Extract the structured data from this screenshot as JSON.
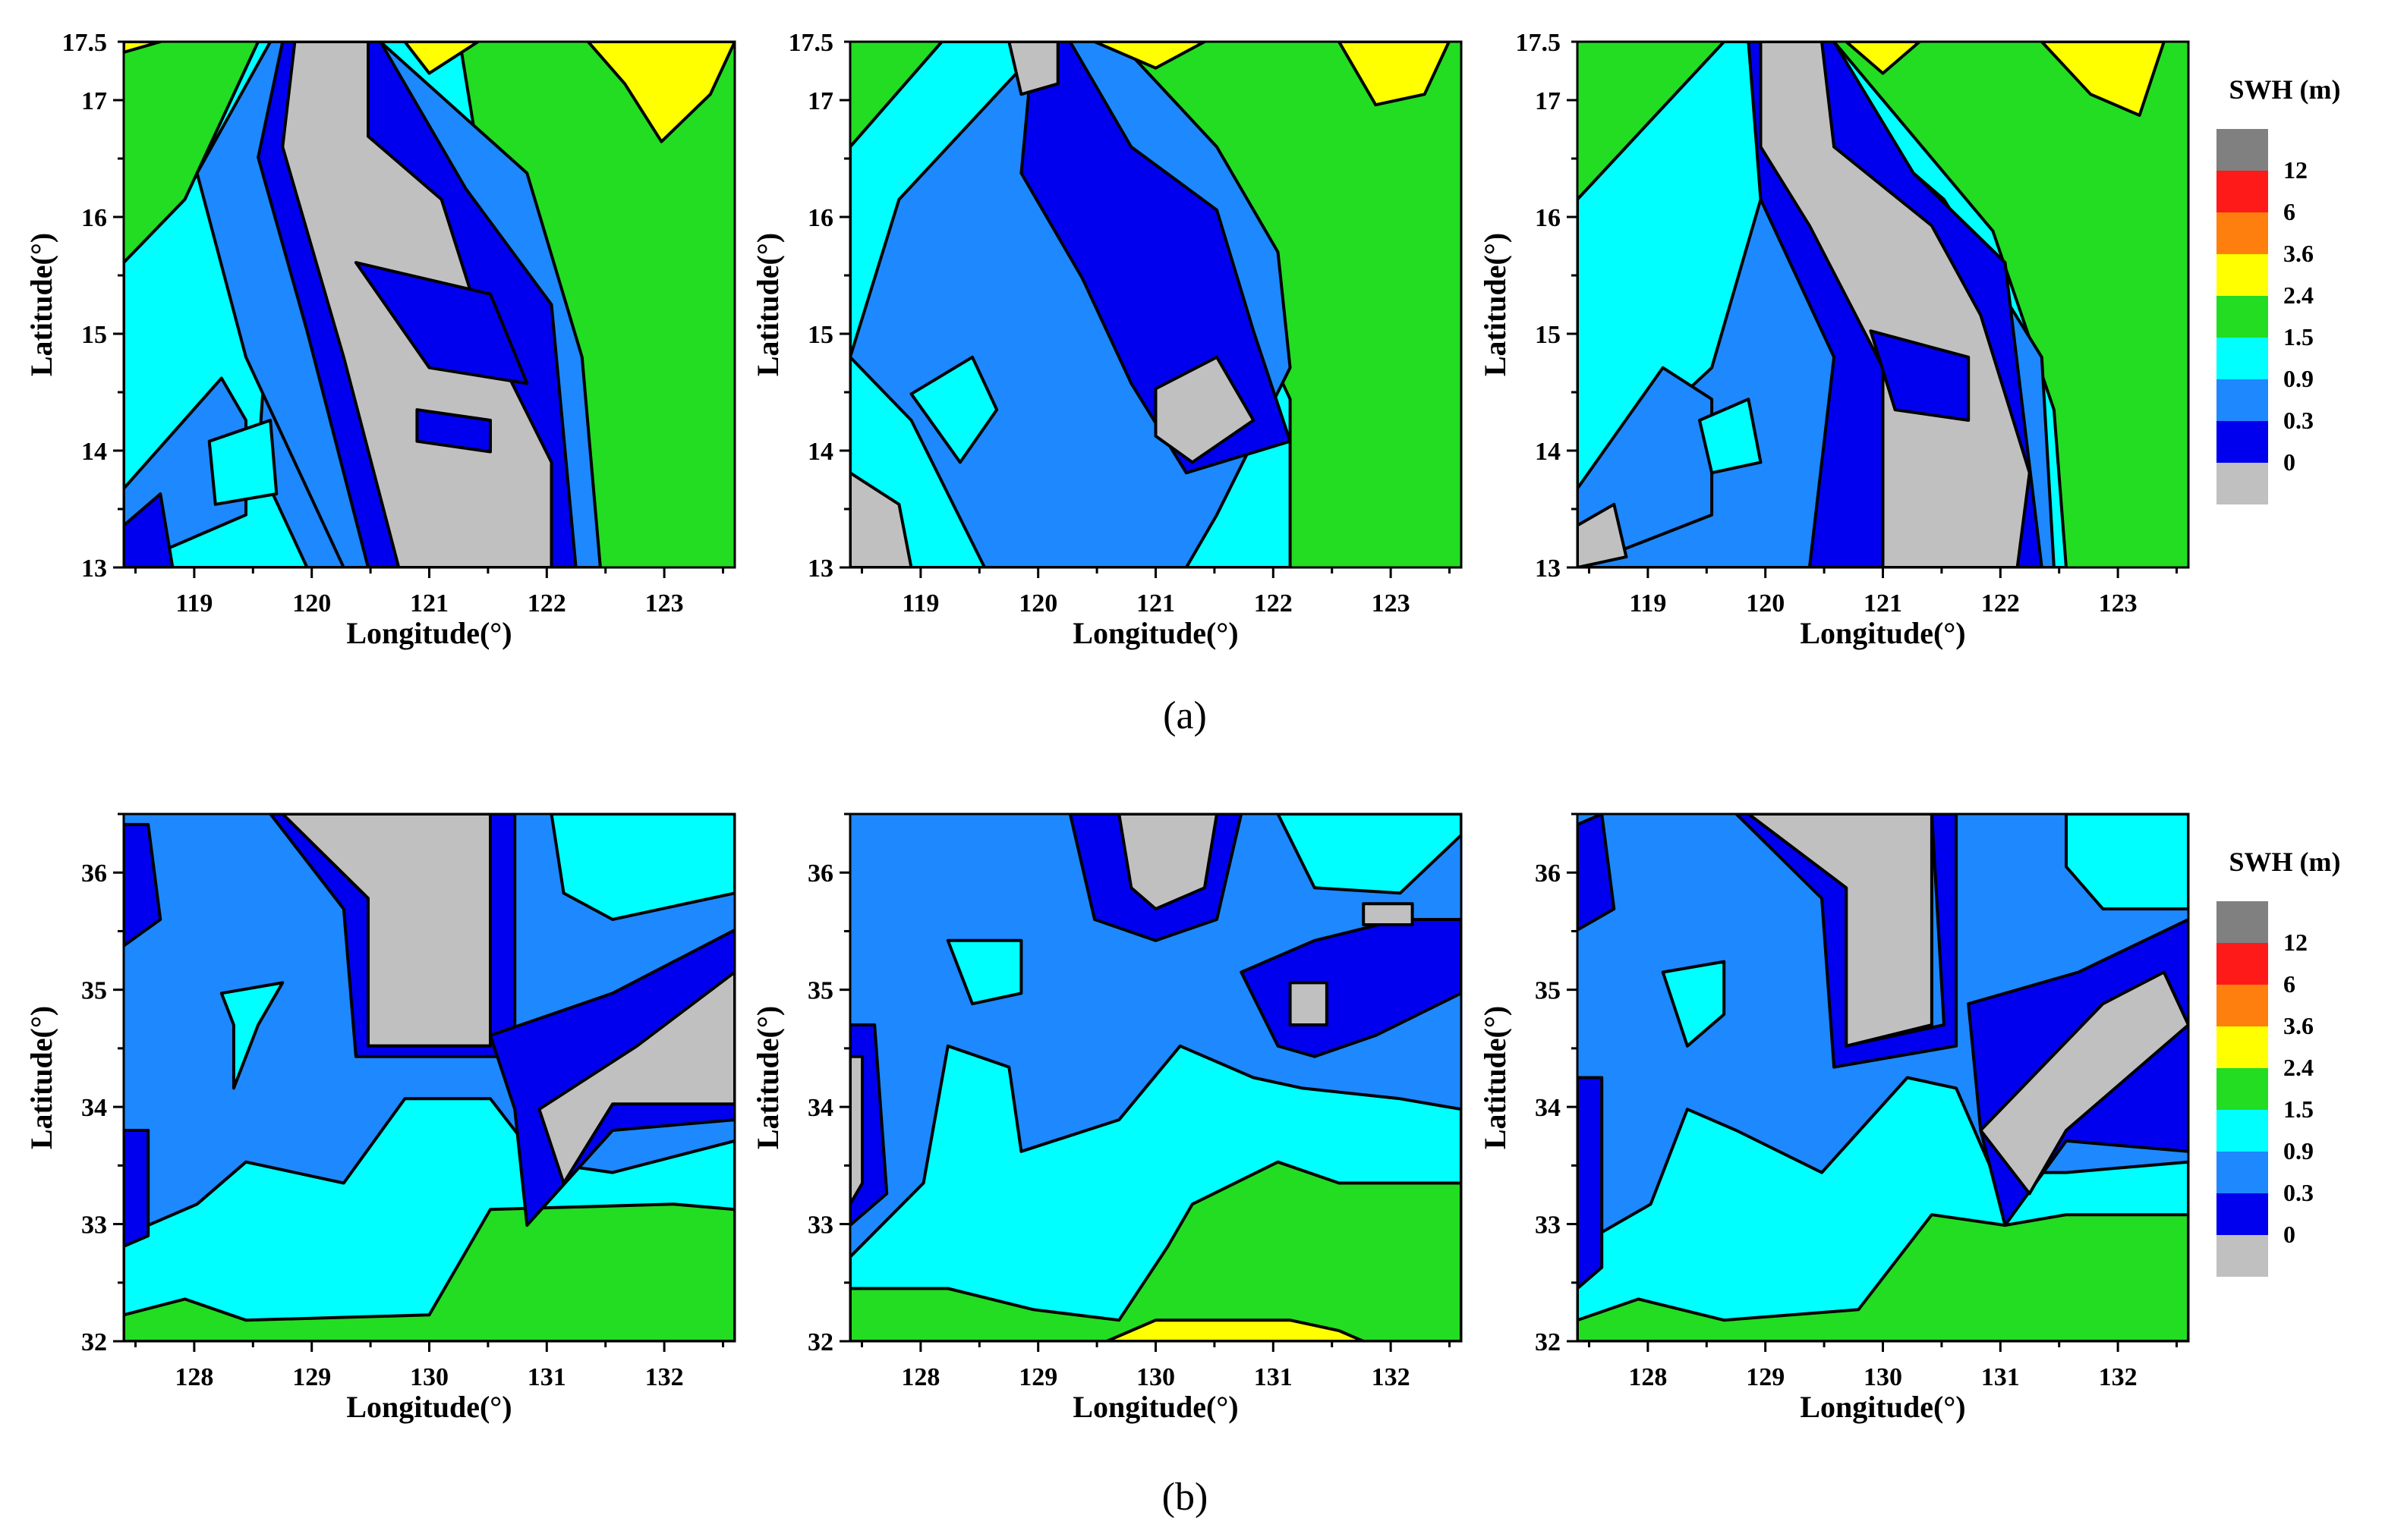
{
  "chart_data": [
    {
      "type": "heatmap",
      "group": "(a)",
      "xlabel": "Longitude(°)",
      "ylabel": "Latitude(°)",
      "xlim": [
        118.4,
        123.6
      ],
      "ylim": [
        13,
        17.5
      ],
      "x_ticks": [
        "119",
        "120",
        "121",
        "122",
        "123"
      ],
      "y_ticks": [
        "13",
        "14",
        "15",
        "16",
        "17",
        "17.5"
      ],
      "grid": false,
      "panels": 3
    },
    {
      "type": "heatmap",
      "group": "(b)",
      "xlabel": "Longitude(°)",
      "ylabel": "Latitude(°)",
      "xlim": [
        127.4,
        132.6
      ],
      "ylim": [
        32,
        36.5
      ],
      "x_ticks": [
        "128",
        "129",
        "130",
        "131",
        "132"
      ],
      "y_ticks": [
        "32",
        "33",
        "34",
        "35",
        "36"
      ],
      "grid": false,
      "panels": 3
    }
  ],
  "captions": [
    "(a)",
    "(b)"
  ],
  "legend": {
    "title": "SWH (m)",
    "placement": "right",
    "labels": [
      "12",
      "6",
      "3.6",
      "2.4",
      "1.5",
      "0.9",
      "0.3",
      "0"
    ],
    "colors": [
      "#808080",
      "#ff1a1a",
      "#ff7f0e",
      "#ffff00",
      "#22dd22",
      "#00ffff",
      "#1e88ff",
      "#0000ee",
      "#c0c0c0"
    ]
  },
  "colors": {
    "gray": "#c0c0c0",
    "blue": "#0000ee",
    "mid_blue": "#1e88ff",
    "cyan": "#00ffff",
    "green": "#22dd22",
    "yellow": "#ffff00"
  }
}
